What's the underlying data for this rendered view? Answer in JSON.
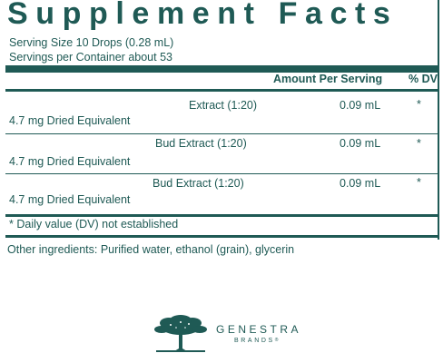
{
  "label": {
    "title": "Supplement Facts",
    "serving_size": "Serving Size 10 Drops (0.28 mL)",
    "servings_per_container": "Servings per Container about 53",
    "header_amount": "Amount Per Serving",
    "header_dv": "% DV",
    "ingredients": [
      {
        "name": "Extract (1:20)",
        "sub": "4.7 mg Dried Equivalent",
        "amount": "0.09 mL",
        "dv": "*"
      },
      {
        "name": "Bud Extract (1:20)",
        "sub": "4.7 mg Dried Equivalent",
        "amount": "0.09 mL",
        "dv": "*"
      },
      {
        "name": "Bud Extract (1:20)",
        "sub": "4.7 mg Dried Equivalent",
        "amount": "0.09 mL",
        "dv": "*"
      }
    ],
    "footnote": "* Daily value (DV) not established"
  },
  "other_ingredients": "Other ingredients: Purified water, ethanol (grain), glycerin",
  "brand": {
    "name": "GENESTRA",
    "sub": "BRANDS",
    "registered_mark": "®",
    "logo_icon": "tree-icon"
  },
  "colors": {
    "text": "#1f5a55",
    "rules": "#1f5a55"
  }
}
